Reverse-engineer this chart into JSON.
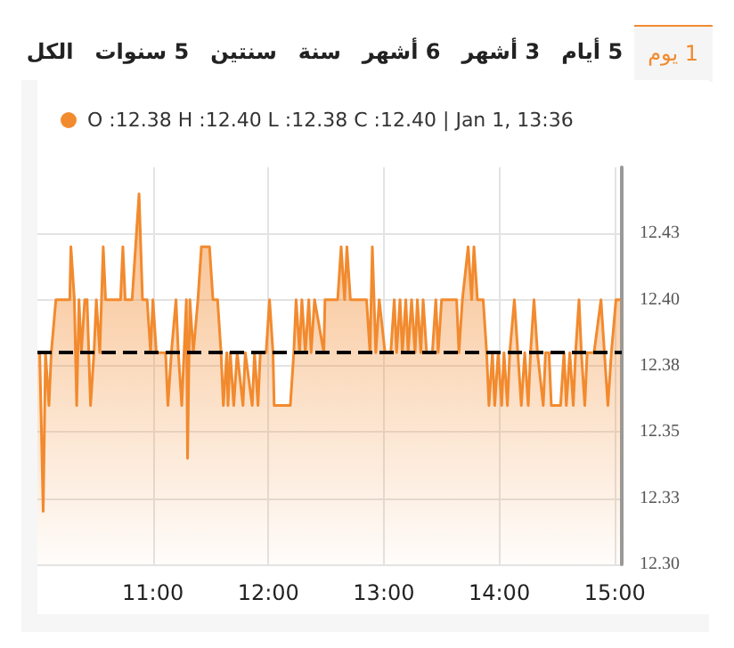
{
  "chart_data": {
    "type": "area",
    "annotations": [
      "1 يوم",
      "5 أيام",
      "3 أشهر",
      "6 أشهر",
      "سنة",
      "سنتين",
      "5 سنوات",
      "الكل",
      "O :12.38 H :12.40 L :12.38 C :12.40 | Jan 1, 13:36"
    ],
    "series": [
      {
        "color": "#f28a2e",
        "x": [
          10.0,
          10.02,
          10.05,
          10.07,
          10.1,
          10.12,
          10.16,
          10.28,
          10.29,
          10.32,
          10.34,
          10.36,
          10.38,
          10.41,
          10.43,
          10.46,
          10.49,
          10.51,
          10.54,
          10.57,
          10.59,
          10.72,
          10.74,
          10.76,
          10.82,
          10.85,
          10.88,
          10.91,
          10.95,
          10.98,
          11.0,
          11.03,
          11.11,
          11.13,
          11.16,
          11.2,
          11.22,
          11.25,
          11.29,
          11.3,
          11.32,
          11.35,
          11.39,
          11.42,
          11.49,
          11.52,
          11.56,
          11.59,
          11.61,
          11.64,
          11.65,
          11.67,
          11.7,
          11.73,
          11.78,
          11.8,
          11.86,
          11.88,
          11.91,
          11.93,
          11.98,
          12.01,
          12.04,
          12.05,
          12.19,
          12.22,
          12.24,
          12.27,
          12.29,
          12.32,
          12.35,
          12.37,
          12.4,
          12.48,
          12.49,
          12.6,
          12.63,
          12.66,
          12.68,
          12.71,
          12.85,
          12.88,
          12.9,
          12.93,
          12.96,
          13.01,
          13.06,
          13.09,
          13.11,
          13.14,
          13.16,
          13.19,
          13.21,
          13.24,
          13.27,
          13.29,
          13.32,
          13.34,
          13.37,
          13.42,
          13.45,
          13.47,
          13.5,
          13.63,
          13.65,
          13.68,
          13.73,
          13.76,
          13.78,
          13.81,
          13.86,
          13.89,
          13.91,
          13.94,
          13.96,
          13.99,
          14.02,
          14.04,
          14.07,
          14.09,
          14.13,
          14.16,
          14.19,
          14.22,
          14.25,
          14.27,
          14.3,
          14.33,
          14.38,
          14.4,
          14.43,
          14.45,
          14.53,
          14.56,
          14.58,
          14.61,
          14.64,
          14.66,
          14.69,
          14.71,
          14.74,
          14.76,
          14.82,
          14.88,
          14.91,
          14.94,
          14.97,
          15.01,
          15.05
        ],
        "values": [
          12.38,
          12.38,
          12.32,
          12.38,
          12.36,
          12.38,
          12.4,
          12.4,
          12.42,
          12.4,
          12.36,
          12.4,
          12.38,
          12.4,
          12.4,
          12.36,
          12.38,
          12.4,
          12.38,
          12.42,
          12.4,
          12.4,
          12.42,
          12.4,
          12.4,
          12.42,
          12.44,
          12.4,
          12.4,
          12.38,
          12.4,
          12.38,
          12.38,
          12.36,
          12.38,
          12.4,
          12.38,
          12.36,
          12.4,
          12.34,
          12.4,
          12.38,
          12.4,
          12.42,
          12.42,
          12.4,
          12.4,
          12.38,
          12.36,
          12.38,
          12.36,
          12.38,
          12.36,
          12.38,
          12.36,
          12.38,
          12.36,
          12.38,
          12.36,
          12.38,
          12.38,
          12.4,
          12.38,
          12.36,
          12.36,
          12.38,
          12.4,
          12.38,
          12.4,
          12.38,
          12.4,
          12.38,
          12.4,
          12.38,
          12.4,
          12.4,
          12.42,
          12.4,
          12.42,
          12.4,
          12.4,
          12.38,
          12.42,
          12.38,
          12.4,
          12.38,
          12.38,
          12.4,
          12.38,
          12.4,
          12.38,
          12.4,
          12.38,
          12.4,
          12.38,
          12.4,
          12.38,
          12.4,
          12.38,
          12.38,
          12.4,
          12.38,
          12.4,
          12.4,
          12.38,
          12.4,
          12.42,
          12.4,
          12.42,
          12.4,
          12.4,
          12.38,
          12.36,
          12.38,
          12.36,
          12.38,
          12.36,
          12.38,
          12.36,
          12.38,
          12.4,
          12.38,
          12.36,
          12.38,
          12.36,
          12.38,
          12.4,
          12.38,
          12.36,
          12.38,
          12.38,
          12.36,
          12.36,
          12.38,
          12.36,
          12.38,
          12.36,
          12.38,
          12.4,
          12.38,
          12.36,
          12.38,
          12.38,
          12.4,
          12.38,
          12.36,
          12.38,
          12.4,
          12.4
        ]
      }
    ],
    "xlim": [
      10,
      15.06
    ],
    "xticks": [
      {
        "value": 11,
        "label": "11:00"
      },
      {
        "value": 12,
        "label": "12:00"
      },
      {
        "value": 13,
        "label": "13:00"
      },
      {
        "value": 14,
        "label": "14:00"
      },
      {
        "value": 15,
        "label": "15:00"
      }
    ],
    "ylim": [
      12.3,
      12.45
    ],
    "yticks": [
      {
        "value": 12.3,
        "label": "12.30"
      },
      {
        "value": 12.325,
        "label": "12.33"
      },
      12.35,
      {
        "value": 12.375,
        "label": "12.38"
      },
      {
        "value": 12.4,
        "label": "12.40"
      },
      {
        "value": 12.425,
        "label": "12.43"
      }
    ],
    "ref_lines": [
      {
        "axis": "y",
        "value": 12.38,
        "color": "#000000",
        "line_style": "dashed"
      }
    ],
    "grid": true,
    "marker": "none",
    "line_style": "solid"
  }
}
